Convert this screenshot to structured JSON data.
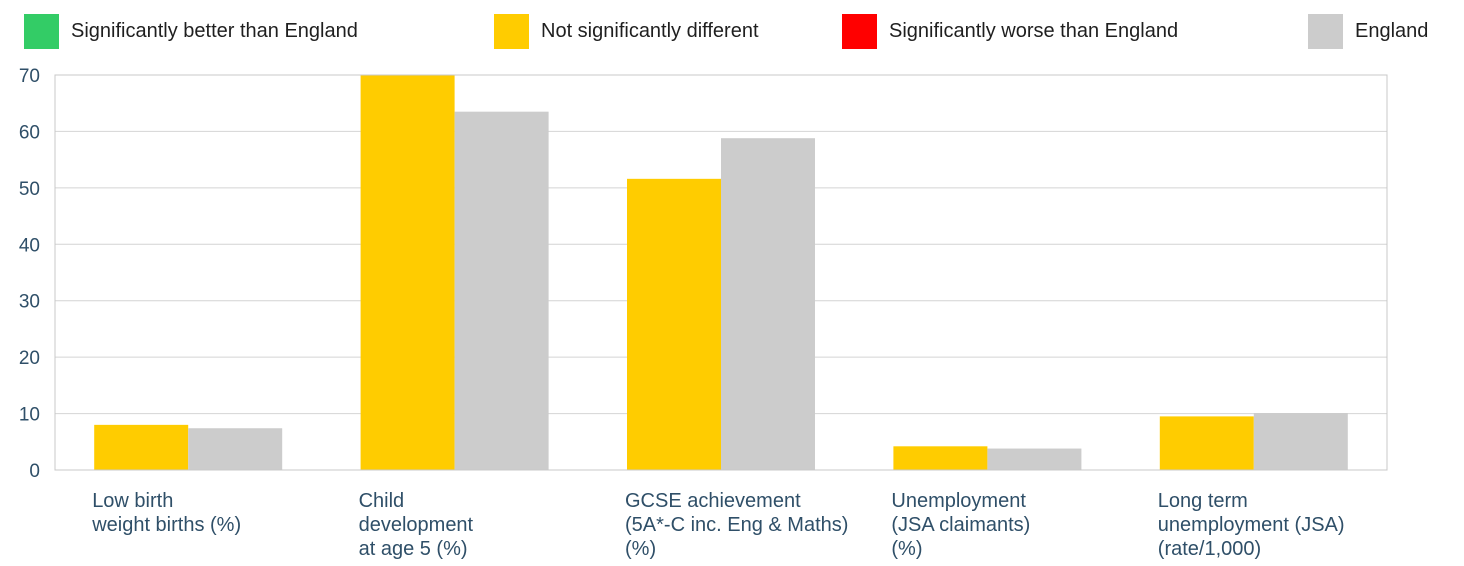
{
  "legend": [
    {
      "label": "Significantly better than England",
      "color": "#33cc66"
    },
    {
      "label": "Not significantly different",
      "color": "#ffcc00"
    },
    {
      "label": "Significantly worse than England",
      "color": "#ff0000"
    },
    {
      "label": "England",
      "color": "#cccccc"
    }
  ],
  "chart_data": {
    "type": "bar",
    "categories": [
      [
        "Low birth",
        "weight births (%)"
      ],
      [
        "Child",
        "development",
        "at age 5 (%)"
      ],
      [
        "GCSE achievement",
        "(5A*-C inc. Eng & Maths)",
        "(%)"
      ],
      [
        "Unemployment",
        "(JSA claimants)",
        "(%)"
      ],
      [
        "Long term",
        "unemployment (JSA)",
        "(rate/1,000)"
      ]
    ],
    "series": [
      {
        "name": "Not significantly different",
        "color": "#ffcc00",
        "values": [
          8.0,
          70.0,
          51.6,
          4.2,
          9.5
        ]
      },
      {
        "name": "England",
        "color": "#cccccc",
        "values": [
          7.4,
          63.5,
          58.8,
          3.8,
          10.1
        ]
      }
    ],
    "ylim": [
      0,
      70
    ],
    "yticks": [
      0,
      10,
      20,
      30,
      40,
      50,
      60,
      70
    ],
    "grid": true,
    "legend_position": "top"
  }
}
